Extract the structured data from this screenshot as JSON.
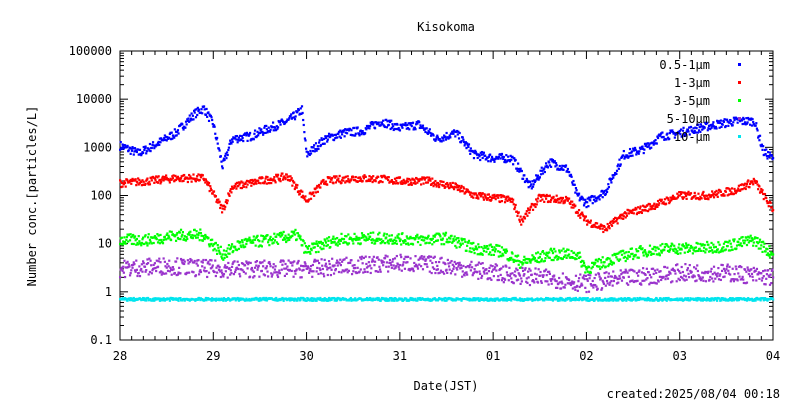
{
  "chart_data": {
    "type": "scatter",
    "title": "Kisokoma",
    "xlabel": "Date(JST)",
    "ylabel": "Number conc.[particles/L]",
    "footer": "created:2025/08/04 00:18",
    "x_tick_labels": [
      "28",
      "29",
      "30",
      "31",
      "01",
      "02",
      "03",
      "04"
    ],
    "y_tick_labels": [
      "0.1",
      "1",
      "10",
      "100",
      "1000",
      "10000",
      "100000"
    ],
    "y_scale": "log",
    "xlim_days": [
      0,
      7
    ],
    "ylim": [
      0.1,
      100000
    ],
    "legend_position": "top-right",
    "series": [
      {
        "name": "0.5-1μm",
        "color": "#0000ff",
        "points": [
          [
            0,
            1100
          ],
          [
            0.2,
            750
          ],
          [
            0.4,
            1200
          ],
          [
            0.6,
            2000
          ],
          [
            0.8,
            5000
          ],
          [
            0.9,
            6500
          ],
          [
            1.0,
            3000
          ],
          [
            1.1,
            400
          ],
          [
            1.2,
            1500
          ],
          [
            1.4,
            1700
          ],
          [
            1.6,
            2500
          ],
          [
            1.8,
            3500
          ],
          [
            1.95,
            6000
          ],
          [
            2.0,
            700
          ],
          [
            2.2,
            1500
          ],
          [
            2.4,
            2000
          ],
          [
            2.6,
            2200
          ],
          [
            2.8,
            3500
          ],
          [
            3.0,
            2500
          ],
          [
            3.2,
            3000
          ],
          [
            3.4,
            1500
          ],
          [
            3.6,
            2000
          ],
          [
            3.8,
            700
          ],
          [
            4.0,
            600
          ],
          [
            4.2,
            600
          ],
          [
            4.3,
            300
          ],
          [
            4.4,
            150
          ],
          [
            4.6,
            500
          ],
          [
            4.8,
            350
          ],
          [
            4.9,
            100
          ],
          [
            5.0,
            70
          ],
          [
            5.2,
            120
          ],
          [
            5.4,
            700
          ],
          [
            5.6,
            900
          ],
          [
            5.8,
            1700
          ],
          [
            6.0,
            2000
          ],
          [
            6.2,
            2500
          ],
          [
            6.4,
            3000
          ],
          [
            6.6,
            3500
          ],
          [
            6.8,
            3500
          ],
          [
            6.9,
            800
          ],
          [
            7.0,
            600
          ]
        ]
      },
      {
        "name": "1-3μm",
        "color": "#ff0000",
        "points": [
          [
            0,
            180
          ],
          [
            0.3,
            200
          ],
          [
            0.6,
            230
          ],
          [
            0.9,
            230
          ],
          [
            1.1,
            50
          ],
          [
            1.2,
            150
          ],
          [
            1.5,
            200
          ],
          [
            1.8,
            250
          ],
          [
            2.0,
            80
          ],
          [
            2.2,
            200
          ],
          [
            2.5,
            230
          ],
          [
            2.8,
            220
          ],
          [
            3.0,
            200
          ],
          [
            3.3,
            200
          ],
          [
            3.6,
            150
          ],
          [
            3.8,
            100
          ],
          [
            4.0,
            90
          ],
          [
            4.2,
            80
          ],
          [
            4.3,
            30
          ],
          [
            4.5,
            90
          ],
          [
            4.8,
            80
          ],
          [
            5.0,
            30
          ],
          [
            5.2,
            20
          ],
          [
            5.4,
            40
          ],
          [
            5.7,
            60
          ],
          [
            6.0,
            100
          ],
          [
            6.3,
            100
          ],
          [
            6.6,
            130
          ],
          [
            6.8,
            200
          ],
          [
            7.0,
            50
          ]
        ]
      },
      {
        "name": "3-5μm",
        "color": "#00ff00",
        "points": [
          [
            0,
            12
          ],
          [
            0.3,
            12
          ],
          [
            0.6,
            15
          ],
          [
            0.9,
            15
          ],
          [
            1.1,
            6
          ],
          [
            1.3,
            10
          ],
          [
            1.6,
            12
          ],
          [
            1.9,
            15
          ],
          [
            2.0,
            7
          ],
          [
            2.3,
            12
          ],
          [
            2.6,
            13
          ],
          [
            2.9,
            13
          ],
          [
            3.2,
            12
          ],
          [
            3.5,
            13
          ],
          [
            3.8,
            8
          ],
          [
            4.1,
            7
          ],
          [
            4.3,
            4
          ],
          [
            4.6,
            6
          ],
          [
            4.9,
            6
          ],
          [
            5.0,
            3
          ],
          [
            5.3,
            5
          ],
          [
            5.6,
            7
          ],
          [
            5.9,
            8
          ],
          [
            6.2,
            8
          ],
          [
            6.5,
            9
          ],
          [
            6.8,
            12
          ],
          [
            7.0,
            6
          ]
        ]
      },
      {
        "name": "5-10μm",
        "color": "#9933cc",
        "points": [
          [
            0,
            3
          ],
          [
            0.5,
            3.5
          ],
          [
            1.0,
            3
          ],
          [
            1.5,
            3
          ],
          [
            2.0,
            3
          ],
          [
            2.5,
            3.5
          ],
          [
            3.0,
            4
          ],
          [
            3.5,
            3.5
          ],
          [
            4.0,
            2.5
          ],
          [
            4.5,
            2
          ],
          [
            5.0,
            1.5
          ],
          [
            5.5,
            2
          ],
          [
            6.0,
            2.5
          ],
          [
            6.5,
            2.5
          ],
          [
            7.0,
            2
          ]
        ]
      },
      {
        "name": "10-μm",
        "color": "#00e5ee",
        "points": [
          [
            0,
            0.7
          ],
          [
            1.0,
            0.7
          ],
          [
            2.0,
            0.7
          ],
          [
            3.0,
            0.7
          ],
          [
            4.0,
            0.7
          ],
          [
            5.0,
            0.7
          ],
          [
            6.0,
            0.7
          ],
          [
            7.0,
            0.7
          ]
        ]
      }
    ]
  }
}
